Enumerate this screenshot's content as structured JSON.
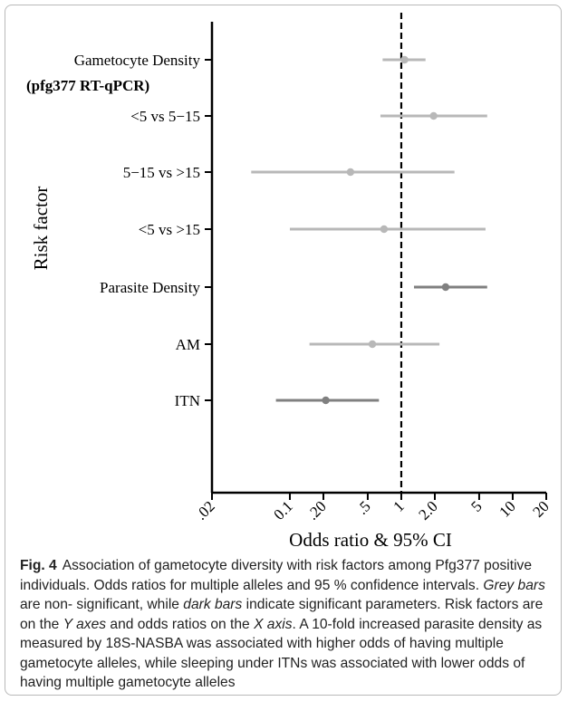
{
  "chart_data": {
    "type": "forest",
    "ylabel": "Risk factor",
    "xlabel": "Odds ratio & 95% CI",
    "x_scale": "log",
    "xlim": [
      0.02,
      20
    ],
    "x_ticks": [
      {
        "value": 0.02,
        "label": ".02"
      },
      {
        "value": 0.1,
        "label": "0.1"
      },
      {
        "value": 0.2,
        "label": ".20"
      },
      {
        "value": 0.5,
        "label": ".5"
      },
      {
        "value": 1,
        "label": "1"
      },
      {
        "value": 2,
        "label": "2.0"
      },
      {
        "value": 5,
        "label": "5"
      },
      {
        "value": 10,
        "label": "10"
      },
      {
        "value": 20,
        "label": "20"
      }
    ],
    "reference_line": 1,
    "rows": [
      {
        "label": "Gametocyte Density",
        "sublabel": "(pfg377 RT-qPCR)",
        "or": 1.07,
        "lower": 0.68,
        "upper": 1.65,
        "significant": false
      },
      {
        "label": "<5 vs 5−15",
        "or": 1.95,
        "lower": 0.65,
        "upper": 5.9,
        "significant": false
      },
      {
        "label": "5−15 vs >15",
        "or": 0.35,
        "lower": 0.045,
        "upper": 3.0,
        "significant": false
      },
      {
        "label": "<5 vs >15",
        "or": 0.7,
        "lower": 0.1,
        "upper": 5.7,
        "significant": false
      },
      {
        "label": "Parasite Density",
        "or": 2.5,
        "lower": 1.3,
        "upper": 5.9,
        "significant": true
      },
      {
        "label": "AM",
        "or": 0.55,
        "lower": 0.15,
        "upper": 2.2,
        "significant": false
      },
      {
        "label": "ITN",
        "or": 0.21,
        "lower": 0.075,
        "upper": 0.63,
        "significant": true
      }
    ],
    "colors": {
      "nonsignificant": "#b8b8b8",
      "significant": "#808080"
    }
  },
  "caption": {
    "label": "Fig. 4",
    "segments": [
      {
        "text": "Association of gametocyte diversity with risk factors among Pfg377 positive individuals. Odds ratios for multiple alleles and 95 % confidence intervals. ",
        "italic": false
      },
      {
        "text": "Grey bars",
        "italic": true
      },
      {
        "text": " are non- significant, while ",
        "italic": false
      },
      {
        "text": "dark bars",
        "italic": true
      },
      {
        "text": " indicate significant parameters. Risk factors are on the ",
        "italic": false
      },
      {
        "text": "Y axes",
        "italic": true
      },
      {
        "text": " and odds ratios on the ",
        "italic": false
      },
      {
        "text": "X axis",
        "italic": true
      },
      {
        "text": ". A 10-fold increased parasite density as measured by 18S-NASBA was associated with higher odds of having multiple gametocyte alleles, while sleeping under ITNs was associated with lower odds of having multiple gametocyte alleles",
        "italic": false
      }
    ]
  }
}
